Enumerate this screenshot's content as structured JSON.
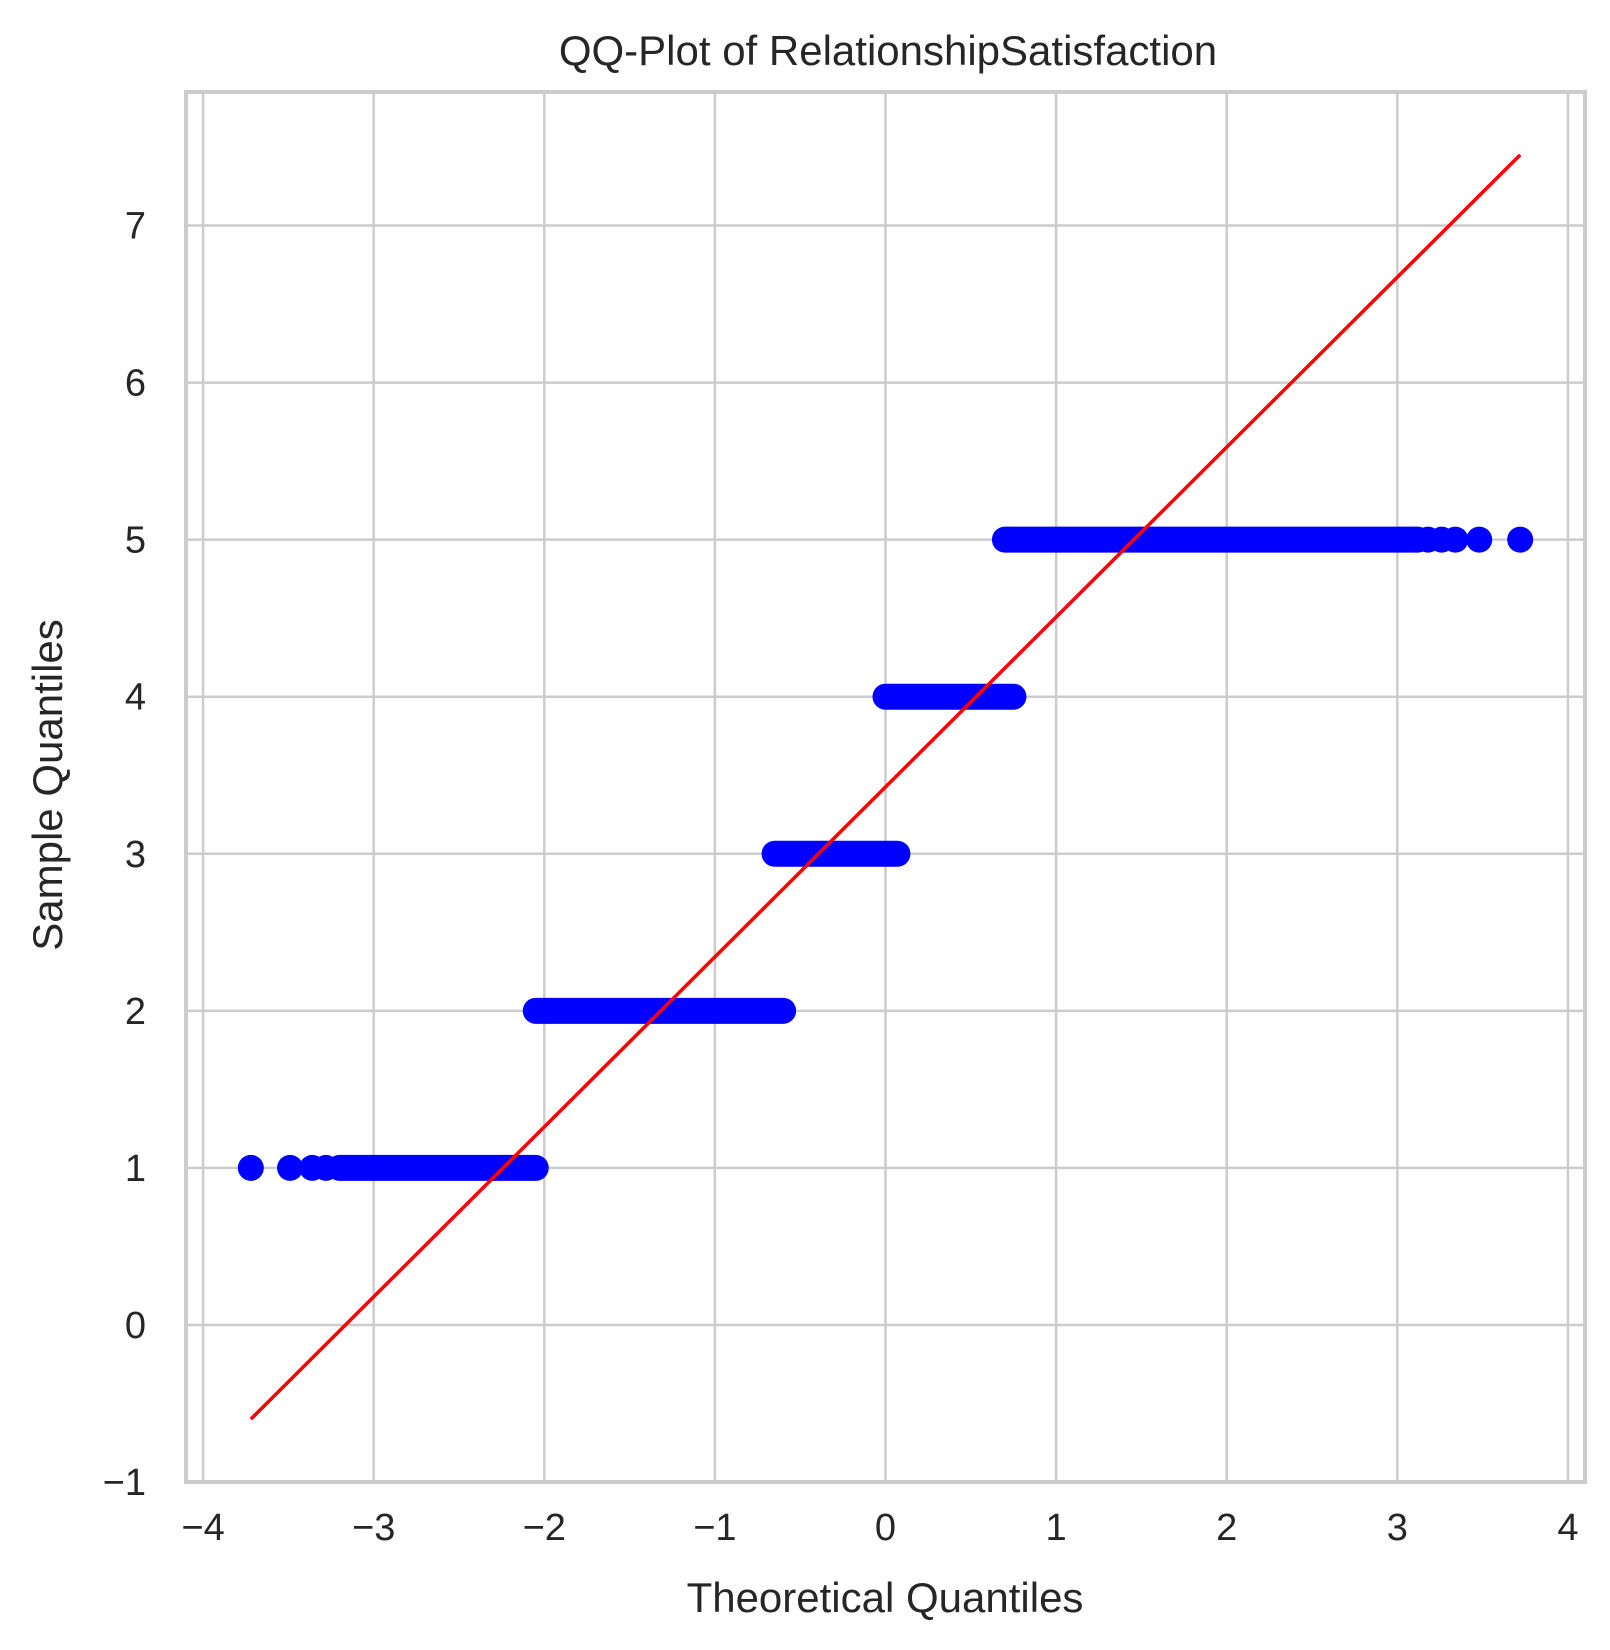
{
  "chart_data": {
    "type": "scatter",
    "title": "QQ-Plot of RelationshipSatisfaction",
    "xlabel": "Theoretical Quantiles",
    "ylabel": "Sample Quantiles",
    "xlim": [
      -4.1,
      4.1
    ],
    "ylim": [
      -1.0,
      7.85
    ],
    "xticks": [
      -4,
      -3,
      -2,
      -1,
      0,
      1,
      2,
      3,
      4
    ],
    "yticks": [
      -1,
      0,
      1,
      2,
      3,
      4,
      5,
      6,
      7
    ],
    "xtick_labels": [
      "−4",
      "−3",
      "−2",
      "−1",
      "0",
      "1",
      "2",
      "3",
      "4"
    ],
    "ytick_labels": [
      "−1",
      "0",
      "1",
      "2",
      "3",
      "4",
      "5",
      "6",
      "7"
    ],
    "grid": true,
    "colors": {
      "points": "#0000ff",
      "line": "#ff0000",
      "grid": "#cccccc",
      "spine": "#cccccc",
      "text": "#262626"
    },
    "series": [
      {
        "kind": "points",
        "segments": [
          {
            "y": 1,
            "x_start": -3.2,
            "x_end": -2.05,
            "isolated_x": [
              -3.72,
              -3.49,
              -3.36,
              -3.28
            ]
          },
          {
            "y": 2,
            "x_start": -2.05,
            "x_end": -0.6,
            "isolated_x": []
          },
          {
            "y": 3,
            "x_start": -0.65,
            "x_end": 0.07,
            "isolated_x": []
          },
          {
            "y": 4,
            "x_start": 0.0,
            "x_end": 0.75,
            "isolated_x": []
          },
          {
            "y": 5,
            "x_start": 0.7,
            "x_end": 3.12,
            "isolated_x": [
              3.18,
              3.26,
              3.34,
              3.48,
              3.72
            ]
          }
        ]
      },
      {
        "kind": "reference-line",
        "x": [
          -3.72,
          3.72
        ],
        "y": [
          -0.6,
          7.45
        ]
      }
    ]
  }
}
